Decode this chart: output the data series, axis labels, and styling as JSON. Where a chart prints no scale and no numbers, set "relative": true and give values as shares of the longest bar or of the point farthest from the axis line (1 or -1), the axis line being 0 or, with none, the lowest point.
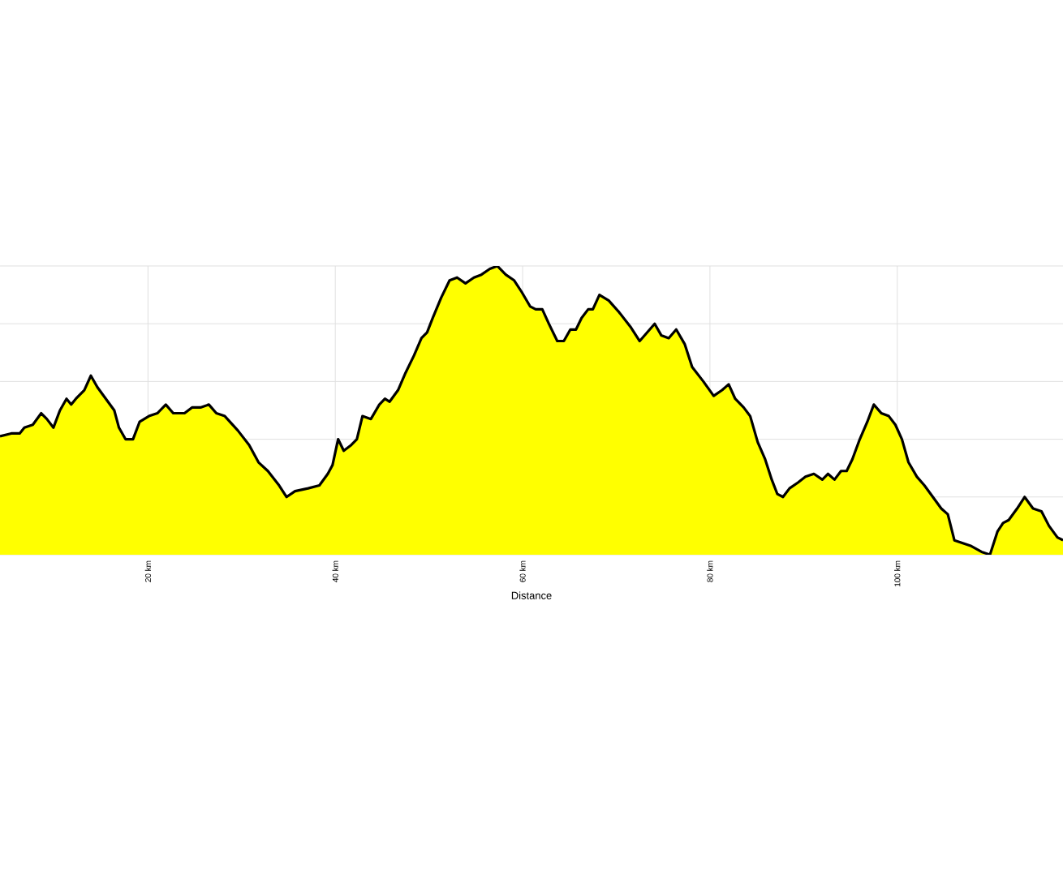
{
  "chart_data": {
    "type": "area",
    "relative": true,
    "xlabel": "Distance",
    "grid": true,
    "xlim": [
      4.2,
      117.7
    ],
    "xticks": [
      {
        "value": 20,
        "label": "20 km"
      },
      {
        "value": 40,
        "label": "40 km"
      },
      {
        "value": 60,
        "label": "60 km"
      },
      {
        "value": 80,
        "label": "80 km"
      },
      {
        "value": 100,
        "label": "100 km"
      }
    ],
    "series": [
      {
        "color": "#ffff00",
        "x": [
          4.2,
          5.4,
          6.3,
          6.8,
          7.7,
          8.6,
          9.2,
          9.9,
          10.6,
          11.3,
          11.8,
          12.3,
          13.2,
          13.9,
          14.6,
          15.5,
          16.4,
          16.9,
          17.6,
          18.4,
          19.1,
          20.1,
          21.0,
          21.9,
          22.7,
          23.9,
          24.7,
          25.6,
          26.5,
          27.3,
          28.2,
          29.6,
          30.8,
          31.8,
          32.8,
          34.0,
          34.8,
          35.7,
          37.1,
          38.3,
          39.2,
          39.7,
          40.3,
          40.9,
          41.7,
          42.3,
          42.9,
          43.8,
          44.7,
          45.3,
          45.8,
          46.7,
          47.5,
          48.4,
          49.2,
          49.8,
          50.4,
          51.3,
          52.2,
          53.0,
          53.9,
          54.8,
          55.6,
          56.5,
          57.3,
          58.2,
          59.1,
          59.9,
          60.8,
          61.4,
          62.1,
          62.8,
          63.7,
          64.4,
          65.1,
          65.7,
          66.3,
          67.0,
          67.5,
          68.2,
          69.2,
          70.3,
          71.5,
          72.5,
          73.3,
          74.1,
          74.8,
          75.6,
          76.4,
          77.3,
          78.1,
          79.3,
          80.4,
          81.3,
          82.0,
          82.7,
          83.6,
          84.3,
          85.1,
          85.9,
          86.6,
          87.2,
          87.8,
          88.5,
          89.4,
          90.2,
          91.1,
          92.0,
          92.6,
          93.3,
          94.0,
          94.6,
          95.2,
          96.0,
          96.8,
          97.5,
          98.3,
          99.1,
          99.8,
          100.5,
          101.2,
          102.1,
          102.9,
          103.8,
          104.7,
          105.4,
          106.1,
          107.0,
          107.9,
          109.0,
          109.9,
          110.7,
          111.3,
          111.9,
          112.8,
          113.6,
          114.5,
          115.4,
          116.2,
          117.1,
          117.7
        ],
        "values": [
          0.41,
          0.42,
          0.42,
          0.44,
          0.45,
          0.49,
          0.47,
          0.44,
          0.5,
          0.54,
          0.52,
          0.54,
          0.57,
          0.62,
          0.58,
          0.54,
          0.5,
          0.44,
          0.4,
          0.4,
          0.46,
          0.48,
          0.49,
          0.52,
          0.49,
          0.49,
          0.51,
          0.51,
          0.52,
          0.49,
          0.48,
          0.43,
          0.38,
          0.32,
          0.29,
          0.24,
          0.2,
          0.22,
          0.23,
          0.24,
          0.28,
          0.31,
          0.4,
          0.36,
          0.38,
          0.4,
          0.48,
          0.47,
          0.52,
          0.54,
          0.53,
          0.57,
          0.63,
          0.69,
          0.75,
          0.77,
          0.82,
          0.89,
          0.95,
          0.96,
          0.94,
          0.96,
          0.97,
          0.99,
          1.0,
          0.97,
          0.95,
          0.91,
          0.86,
          0.85,
          0.85,
          0.8,
          0.74,
          0.74,
          0.78,
          0.78,
          0.82,
          0.85,
          0.85,
          0.9,
          0.88,
          0.84,
          0.79,
          0.74,
          0.77,
          0.8,
          0.76,
          0.75,
          0.78,
          0.73,
          0.65,
          0.6,
          0.55,
          0.57,
          0.59,
          0.54,
          0.51,
          0.48,
          0.39,
          0.33,
          0.26,
          0.21,
          0.2,
          0.23,
          0.25,
          0.27,
          0.28,
          0.26,
          0.28,
          0.26,
          0.29,
          0.29,
          0.33,
          0.4,
          0.46,
          0.52,
          0.49,
          0.48,
          0.45,
          0.4,
          0.32,
          0.27,
          0.24,
          0.2,
          0.16,
          0.14,
          0.05,
          0.04,
          0.03,
          0.01,
          0.0,
          0.08,
          0.11,
          0.12,
          0.16,
          0.2,
          0.16,
          0.15,
          0.1,
          0.06,
          0.05
        ]
      }
    ]
  }
}
